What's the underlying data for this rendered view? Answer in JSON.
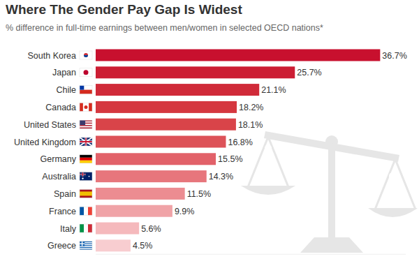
{
  "chart_data": {
    "type": "bar",
    "orientation": "horizontal",
    "title": "Where The Gender Pay Gap Is Widest",
    "subtitle": "% difference in full-time earnings between men/women in selected OECD nations*",
    "categories": [
      "South Korea",
      "Japan",
      "Chile",
      "Canada",
      "United States",
      "United Kingdom",
      "Germany",
      "Australia",
      "Spain",
      "France",
      "Italy",
      "Greece"
    ],
    "values": [
      36.7,
      25.7,
      21.1,
      18.2,
      18.1,
      16.8,
      15.5,
      14.3,
      11.5,
      9.9,
      5.6,
      4.5
    ],
    "value_labels": [
      "36.7%",
      "25.7%",
      "21.1%",
      "18.2%",
      "18.1%",
      "16.8%",
      "15.5%",
      "14.3%",
      "11.5%",
      "9.9%",
      "5.6%",
      "4.5%"
    ],
    "colors": [
      "#c8102e",
      "#cc1d33",
      "#d02a39",
      "#d5373f",
      "#d94449",
      "#dd5258",
      "#e26169",
      "#e7767c",
      "#ec8c91",
      "#f0a3a7",
      "#f5b9bc",
      "#f8cdd0"
    ],
    "ylim": [
      0,
      40
    ],
    "yticks": [],
    "grid": false,
    "data_labels": true,
    "tick_labels": "x"
  }
}
